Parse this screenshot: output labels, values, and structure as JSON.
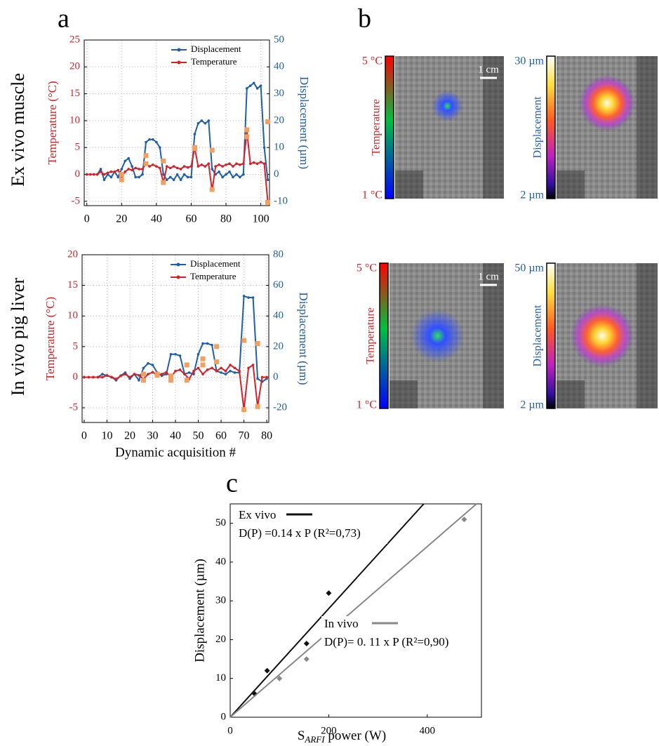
{
  "figure": {
    "panel_labels": [
      "a",
      "b",
      "c"
    ],
    "row_labels": [
      "Ex vivo muscle",
      "In vivo pig liver"
    ],
    "maps": [
      {
        "quantity": "Temperature",
        "max_label": "5 °C",
        "min_label": "1 °C",
        "scale_bar": "1 cm",
        "color": "#d62028"
      },
      {
        "quantity": "Displacement",
        "max_label": "30 µm",
        "min_label": "2 µm",
        "color": "#1f5fa8"
      },
      {
        "quantity": "Temperature",
        "max_label": "5 °C",
        "min_label": "1 °C",
        "scale_bar": "1 cm",
        "color": "#d62028"
      },
      {
        "quantity": "Displacement",
        "max_label": "50 µm",
        "min_label": "2 µm",
        "color": "#1f5fa8"
      }
    ]
  },
  "chart_data": [
    {
      "type": "line",
      "ylabel": "Temperature (°C)",
      "y2label": "Displacement (µm)",
      "xlim": [
        -1.5,
        105
      ],
      "xticks": [
        0,
        20,
        40,
        60,
        80,
        100
      ],
      "ylim": [
        -5.8,
        25
      ],
      "yticks": [
        -5,
        0,
        5,
        10,
        15,
        20,
        25
      ],
      "y2lim": [
        -11.6,
        50
      ],
      "y2ticks": [
        -10,
        0,
        10,
        20,
        30,
        40,
        50
      ],
      "grid": true,
      "legend": "upper right",
      "series": [
        {
          "name": "Displacement",
          "color": "#1f5fa8",
          "axis": "y2",
          "x": [
            0,
            2,
            4,
            6,
            8,
            10,
            12,
            14,
            16,
            18,
            20,
            22,
            24,
            26,
            28,
            30,
            32,
            34,
            36,
            38,
            40,
            42,
            44,
            46,
            48,
            50,
            52,
            54,
            56,
            58,
            60,
            62,
            64,
            66,
            68,
            70,
            72,
            74,
            76,
            78,
            80,
            82,
            84,
            86,
            88,
            90,
            92,
            94,
            96,
            98,
            100,
            102,
            104
          ],
          "values": [
            0,
            0,
            0,
            0,
            2,
            -2,
            0,
            -1,
            1,
            -1,
            2,
            5,
            6,
            3,
            -1,
            -1,
            0,
            12,
            13,
            13,
            12,
            10,
            0,
            -2,
            -1,
            -2,
            0,
            -2,
            0,
            -1,
            -1,
            15,
            19,
            20,
            19,
            20,
            2,
            0,
            1,
            -1,
            0,
            1,
            -1,
            0,
            -1,
            0,
            32,
            33,
            34,
            32,
            33,
            10,
            -2
          ]
        },
        {
          "name": "Temperature",
          "color": "#d62028",
          "axis": "y",
          "x": [
            0,
            2,
            4,
            6,
            8,
            10,
            12,
            14,
            16,
            18,
            20,
            22,
            24,
            26,
            28,
            30,
            32,
            34,
            36,
            38,
            40,
            42,
            44,
            46,
            48,
            50,
            52,
            54,
            56,
            58,
            60,
            62,
            64,
            66,
            68,
            70,
            72,
            74,
            76,
            78,
            80,
            82,
            84,
            86,
            88,
            90,
            92,
            94,
            96,
            98,
            100,
            102,
            104
          ],
          "values": [
            0,
            0,
            0,
            0,
            0.5,
            0,
            0.3,
            0.5,
            0.5,
            0.8,
            -0.5,
            0.5,
            1,
            0.8,
            1.2,
            1,
            1,
            2,
            1.5,
            1.8,
            1.5,
            1.2,
            -1.5,
            1.5,
            1.2,
            1.5,
            1.2,
            1,
            1.5,
            1.3,
            1.5,
            5,
            1.5,
            1.8,
            1.5,
            2,
            -3,
            1.5,
            1.8,
            1.5,
            1.8,
            2,
            1.5,
            2,
            1.8,
            2,
            8,
            2,
            2.2,
            2,
            2.3,
            2,
            -5
          ]
        },
        {
          "color": "#f0a060",
          "axis": "y",
          "style": "markers",
          "x": [
            20,
            20,
            34,
            34,
            44,
            44,
            62,
            62,
            72,
            72,
            92,
            92,
            104,
            104
          ],
          "values": [
            -1,
            0,
            3.5,
            2,
            2.5,
            -1.5,
            5,
            4.8,
            4.5,
            -2.8,
            8.3,
            7,
            9.8,
            -5.2
          ]
        }
      ]
    },
    {
      "type": "line",
      "ylabel": "Temperature (°C)",
      "y2label": "Displacement (µm)",
      "xlabel": "Dynamic acquisition #",
      "xlim": [
        -0.9,
        80.9
      ],
      "xticks": [
        0,
        10,
        20,
        30,
        40,
        50,
        60,
        70,
        80
      ],
      "ylim": [
        -7.4,
        20
      ],
      "yticks": [
        -5,
        0,
        5,
        10,
        15,
        20
      ],
      "y2lim": [
        -29.6,
        80
      ],
      "y2ticks": [
        -20,
        0,
        20,
        40,
        60,
        80
      ],
      "grid": true,
      "legend": "upper right",
      "series": [
        {
          "name": "Displacement",
          "color": "#1f5fa8",
          "axis": "y2",
          "x": [
            0,
            2,
            4,
            6,
            8,
            10,
            12,
            14,
            16,
            18,
            20,
            22,
            24,
            26,
            28,
            30,
            32,
            34,
            36,
            38,
            40,
            42,
            44,
            46,
            48,
            50,
            52,
            54,
            56,
            58,
            60,
            62,
            64,
            66,
            68,
            70,
            72,
            74,
            76,
            78,
            80
          ],
          "values": [
            0,
            0,
            0,
            0,
            2,
            1,
            0,
            -2,
            1,
            3,
            -1,
            2,
            -2,
            6,
            9,
            8,
            3,
            1,
            2,
            15,
            15,
            14,
            2,
            3,
            2,
            15,
            22,
            22,
            21,
            4,
            3,
            2,
            4,
            3,
            3,
            53,
            52,
            52,
            -1,
            -3,
            -1
          ]
        },
        {
          "name": "Temperature",
          "color": "#d62028",
          "axis": "y",
          "x": [
            0,
            2,
            4,
            6,
            8,
            10,
            12,
            14,
            16,
            18,
            20,
            22,
            24,
            26,
            28,
            30,
            32,
            34,
            36,
            38,
            40,
            42,
            44,
            46,
            48,
            50,
            52,
            54,
            56,
            58,
            60,
            62,
            64,
            66,
            68,
            70,
            72,
            74,
            76,
            78,
            80
          ],
          "values": [
            0,
            0,
            0,
            0,
            0,
            0.3,
            0,
            -0.3,
            0.2,
            0.5,
            0,
            0.5,
            0.3,
            -0.3,
            0.5,
            0.8,
            0.3,
            0.5,
            0.8,
            0,
            1,
            1.2,
            0.5,
            -0.3,
            1,
            1.5,
            0.5,
            1.2,
            1.5,
            1,
            1.5,
            1,
            2,
            1.5,
            1,
            -5.3,
            1.5,
            2,
            -4.8,
            0,
            0
          ]
        },
        {
          "color": "#f0a060",
          "axis": "y",
          "style": "markers",
          "x": [
            26,
            26,
            32,
            32,
            38,
            38,
            45,
            45,
            52,
            52,
            58,
            58,
            70,
            70,
            76,
            76
          ],
          "values": [
            0.5,
            -0.5,
            0.5,
            0.3,
            0.2,
            -0.5,
            2,
            -0.5,
            3,
            2,
            5,
            2.5,
            6,
            -5.3,
            5.5,
            -4.8
          ]
        }
      ]
    },
    {
      "type": "scatter",
      "ylabel": "Displacement (µm)",
      "xlabel": {
        "main": "S",
        "sub": "ARFI",
        "rest": " power (W)"
      },
      "xlim": [
        0,
        510
      ],
      "xticks": [
        0,
        200,
        400
      ],
      "ylim": [
        0,
        55
      ],
      "yticks": [
        0,
        10,
        20,
        30,
        40,
        50
      ],
      "series": [
        {
          "name": "Ex vivo",
          "color": "#111111",
          "x": [
            50,
            75,
            155,
            200
          ],
          "values": [
            6,
            12,
            19,
            32
          ],
          "fit_slope": 0.14,
          "equation": "D(P) =0.14 x P  (R²=0,73)"
        },
        {
          "name": "In vivo",
          "color": "#888888",
          "x": [
            100,
            155,
            200,
            475
          ],
          "values": [
            10,
            15,
            21,
            51
          ],
          "fit_slope": 0.11,
          "equation": "D(P)= 0. 11 x P (R²=0,90)"
        }
      ]
    }
  ]
}
